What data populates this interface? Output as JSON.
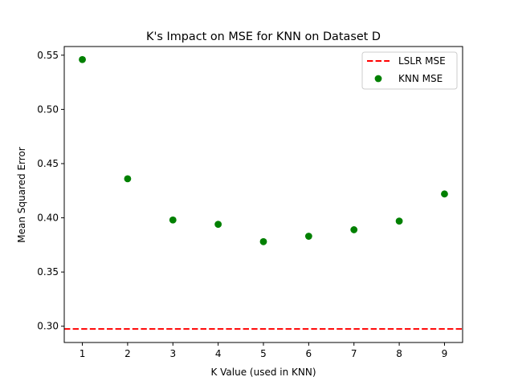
{
  "chart_data": {
    "type": "scatter",
    "title": "K's Impact on MSE for KNN on Dataset D",
    "xlabel": "K Value (used in KNN)",
    "ylabel": "Mean Squared Error",
    "xlim": [
      0.6,
      9.4
    ],
    "ylim": [
      0.285,
      0.558
    ],
    "x_ticks": [
      1,
      2,
      3,
      4,
      5,
      6,
      7,
      8,
      9
    ],
    "y_ticks": [
      0.3,
      0.35,
      0.4,
      0.45,
      0.5,
      0.55
    ],
    "y_tick_labels": [
      "0.30",
      "0.35",
      "0.40",
      "0.45",
      "0.50",
      "0.55"
    ],
    "grid": false,
    "legend_position": "upper right",
    "series": [
      {
        "name": "KNN MSE",
        "kind": "scatter",
        "color": "#008000",
        "x": [
          1,
          2,
          3,
          4,
          5,
          6,
          7,
          8,
          9
        ],
        "y": [
          0.546,
          0.436,
          0.398,
          0.394,
          0.378,
          0.383,
          0.389,
          0.397,
          0.422
        ]
      },
      {
        "name": "LSLR MSE",
        "kind": "hline",
        "color": "#ff0000",
        "line_style": "dashed",
        "y": 0.2975
      }
    ]
  }
}
